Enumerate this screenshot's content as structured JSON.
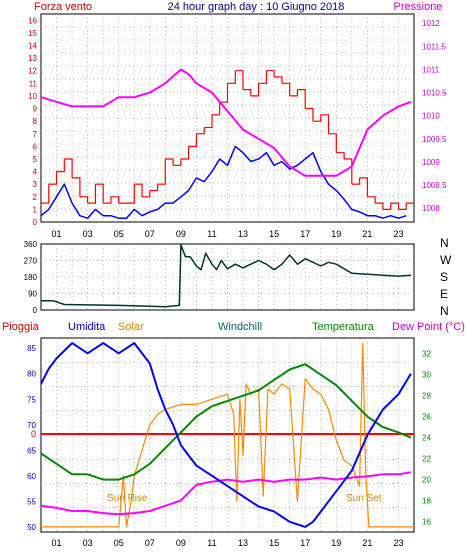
{
  "header": {
    "title": "24 hour graph day : 10 Giugno 2018",
    "left_label": "Forza vento",
    "right_label": "Pressione"
  },
  "wind_panel": {
    "left_ticks": [
      "0",
      "1",
      "2",
      "3",
      "4",
      "5",
      "6",
      "7",
      "8",
      "9",
      "10",
      "11",
      "12",
      "13",
      "14",
      "15",
      "16"
    ],
    "right_ticks": [
      "1008",
      "1008.5",
      "1009",
      "1009.5",
      "1010",
      "1010.5",
      "1011",
      "1011.5",
      "1012"
    ]
  },
  "direction_panel": {
    "left_ticks": [
      "0",
      "90",
      "180",
      "270",
      "360"
    ],
    "right_labels": [
      "N",
      "W",
      "S",
      "E",
      "N"
    ]
  },
  "bottom_panel": {
    "labels": {
      "rain": "Pioggia",
      "humidity": "Umidita",
      "solar": "Solar",
      "windchill": "Windchill",
      "temperature": "Temperatura",
      "dewpoint": "Dew Point (°C)"
    },
    "left_ticks": [
      "50",
      "55",
      "60",
      "65",
      "70",
      "75",
      "80",
      "85"
    ],
    "rain_tick": "0",
    "right_ticks": [
      "16",
      "18",
      "20",
      "22",
      "24",
      "26",
      "28",
      "30",
      "32"
    ],
    "sunrise": "Sun Rise",
    "sunset": "Sun Set"
  },
  "x_ticks": [
    "01",
    "03",
    "05",
    "07",
    "09",
    "11",
    "13",
    "15",
    "17",
    "19",
    "21",
    "23"
  ],
  "colors": {
    "wind": "#ff0000",
    "wind_avg": "#0000ff",
    "pressure": "#ff00ff",
    "direction": "#003333",
    "humidity": "#0000ff",
    "solar": "#ff8800",
    "temperature": "#008800",
    "dewpoint": "#ff00ff",
    "rain": "#ff0000"
  },
  "chart_data": [
    {
      "type": "line",
      "title": "24 hour graph day : 10 Giugno 2018",
      "xlim": [
        0,
        24
      ],
      "series": [
        {
          "name": "Forza vento",
          "axis": "left",
          "ylim": [
            0,
            16.5
          ],
          "x": [
            0,
            0.5,
            1,
            1.5,
            2,
            2.5,
            3,
            3.5,
            4,
            4.5,
            5,
            5.5,
            6,
            6.5,
            7,
            7.5,
            8,
            8.5,
            9,
            9.5,
            10,
            10.5,
            11,
            11.5,
            12,
            12.5,
            13,
            13.5,
            14,
            14.5,
            15,
            15.5,
            16,
            16.5,
            17,
            17.5,
            18,
            18.5,
            19,
            19.5,
            20,
            20.5,
            21,
            21.5,
            22,
            22.5,
            23,
            23.5
          ],
          "y": [
            1.5,
            3,
            4,
            5,
            3.5,
            2,
            1.5,
            3,
            1.5,
            2,
            1.5,
            1.5,
            3,
            2,
            2.5,
            3,
            5,
            4.5,
            5,
            6,
            7,
            7.5,
            8.5,
            9.5,
            11,
            12,
            10.5,
            10,
            11,
            12,
            11.5,
            11,
            10,
            10.5,
            9,
            8,
            8.5,
            7,
            5.5,
            5,
            3,
            3.5,
            2,
            1.5,
            1,
            1.5,
            1,
            1.5
          ]
        },
        {
          "name": "",
          "axis": "left",
          "ylim": [
            0,
            16.5
          ],
          "x": [
            0,
            0.5,
            1,
            1.5,
            2,
            2.5,
            3,
            3.5,
            4,
            4.5,
            5,
            5.5,
            6,
            6.5,
            7,
            7.5,
            8,
            8.5,
            9,
            9.5,
            10,
            10.5,
            11,
            11.5,
            12,
            12.5,
            13,
            13.5,
            14,
            14.5,
            15,
            15.5,
            16,
            16.5,
            17,
            17.5,
            18,
            18.5,
            19,
            19.5,
            20,
            20.5,
            21,
            21.5,
            22,
            22.5,
            23,
            23.5
          ],
          "y": [
            0.5,
            1,
            2,
            3,
            1.5,
            0.5,
            0.3,
            1,
            0.5,
            0.5,
            0.3,
            0.3,
            1,
            0.5,
            0.8,
            1,
            1.5,
            1.5,
            2,
            2.5,
            3.5,
            3.2,
            4,
            5,
            4.5,
            6,
            5.5,
            4.8,
            5,
            5.5,
            4.5,
            4.8,
            4.2,
            4.5,
            5,
            5.5,
            4,
            3,
            2.5,
            1.8,
            1,
            0.8,
            0.5,
            0.5,
            0.3,
            0.5,
            0.3,
            0.5
          ]
        },
        {
          "name": "Pressione",
          "axis": "right",
          "ylim": [
            1007.7,
            1012.2
          ],
          "x": [
            0,
            1,
            2,
            3,
            4,
            5,
            6,
            7,
            8,
            9,
            9.5,
            10,
            11,
            12,
            13,
            14,
            15,
            16,
            17,
            18,
            19,
            20,
            21,
            22,
            23,
            23.8
          ],
          "y": [
            1010.4,
            1010.3,
            1010.2,
            1010.2,
            1010.2,
            1010.4,
            1010.4,
            1010.5,
            1010.7,
            1011.0,
            1010.9,
            1010.7,
            1010.5,
            1010.1,
            1009.7,
            1009.5,
            1009.3,
            1008.9,
            1008.7,
            1008.7,
            1008.7,
            1008.9,
            1009.7,
            1010.0,
            1010.2,
            1010.3
          ]
        }
      ]
    },
    {
      "type": "line",
      "xlim": [
        0,
        24
      ],
      "ylim": [
        0,
        360
      ],
      "series": [
        {
          "x": [
            0,
            0.8,
            1.5,
            3,
            5,
            7,
            8,
            8.9,
            9.0,
            9.3,
            9.6,
            10,
            10.3,
            10.6,
            11,
            11.3,
            11.6,
            12,
            12.5,
            13,
            13.5,
            14,
            14.5,
            15,
            15.5,
            16,
            16.5,
            17,
            17.5,
            18,
            18.5,
            19,
            20,
            21,
            22,
            23,
            23.8
          ],
          "y": [
            50,
            50,
            30,
            28,
            25,
            20,
            18,
            25,
            355,
            290,
            290,
            240,
            220,
            310,
            250,
            220,
            270,
            225,
            250,
            230,
            250,
            270,
            250,
            220,
            250,
            300,
            250,
            280,
            260,
            240,
            260,
            250,
            200,
            195,
            190,
            185,
            190
          ]
        }
      ]
    },
    {
      "type": "line",
      "xlim": [
        0,
        24
      ],
      "series": [
        {
          "name": "Umidita",
          "axis": "left",
          "ylim": [
            49,
            87
          ],
          "x": [
            0,
            0.5,
            1,
            2,
            3,
            4,
            5,
            6,
            7,
            7.5,
            8,
            8.5,
            9,
            9.5,
            10,
            11,
            12,
            13,
            14,
            15,
            16,
            17,
            17.5,
            18,
            19,
            20,
            21,
            22,
            23,
            23.8
          ],
          "y": [
            78,
            81,
            83,
            86,
            84,
            86,
            84,
            86,
            82,
            77,
            73,
            70,
            66,
            64,
            62,
            60,
            58,
            56,
            54,
            53,
            51,
            50,
            51,
            53,
            57,
            61,
            68,
            73,
            76,
            80
          ]
        },
        {
          "name": "Solar",
          "axis": "left",
          "ylim": [
            49,
            87
          ],
          "x": [
            0,
            5,
            5.3,
            5.5,
            5.8,
            6,
            6.5,
            7,
            7.5,
            8,
            9,
            10,
            11,
            12,
            12.4,
            12.6,
            12.8,
            13,
            13.2,
            13.5,
            14,
            14.3,
            14.6,
            15,
            15.5,
            16,
            16.5,
            17,
            17.5,
            18,
            18.5,
            19,
            19.5,
            20,
            20.5,
            20.7,
            20.9,
            21.1,
            21.3,
            22,
            23,
            24
          ],
          "y": [
            50,
            50,
            60,
            50,
            55,
            60,
            65,
            70,
            72,
            73,
            74,
            74,
            75,
            76,
            72,
            55,
            75,
            64,
            78,
            76,
            77,
            56,
            77,
            76,
            78,
            77,
            55,
            79,
            77,
            76,
            73,
            67,
            63,
            62,
            58,
            86,
            60,
            50,
            50,
            50,
            50,
            50
          ]
        },
        {
          "name": "Temperatura",
          "axis": "right",
          "ylim": [
            15,
            33.5
          ],
          "x": [
            0,
            1,
            2,
            3,
            4,
            5,
            6,
            7,
            8,
            9,
            10,
            11,
            12,
            13,
            14,
            15,
            16,
            17,
            18,
            19,
            20,
            21,
            22,
            23,
            23.8
          ],
          "y": [
            22.5,
            21.5,
            20.5,
            20.5,
            20,
            20,
            20.5,
            21.5,
            23,
            24.5,
            26,
            27,
            27.5,
            28,
            28.5,
            29.5,
            30.5,
            31,
            30,
            29,
            27.5,
            26,
            25,
            24.5,
            24
          ]
        },
        {
          "name": "Dew Point (°C)",
          "axis": "right",
          "ylim": [
            15,
            33.5
          ],
          "x": [
            0,
            1,
            2,
            3,
            4,
            5,
            6,
            7,
            8,
            9,
            10,
            11,
            12,
            13,
            14,
            15,
            16,
            17,
            18,
            19,
            20,
            21,
            22,
            23,
            23.8
          ],
          "y": [
            17.5,
            17.3,
            17,
            17,
            16.8,
            16.7,
            16.8,
            17,
            17.5,
            18,
            19.5,
            19.8,
            20,
            19.8,
            20,
            19.8,
            20,
            20,
            20.2,
            20,
            20.2,
            20.3,
            20.5,
            20.5,
            20.7
          ]
        },
        {
          "name": "Pioggia",
          "axis": "left",
          "values_mm": [
            0
          ]
        }
      ]
    }
  ]
}
